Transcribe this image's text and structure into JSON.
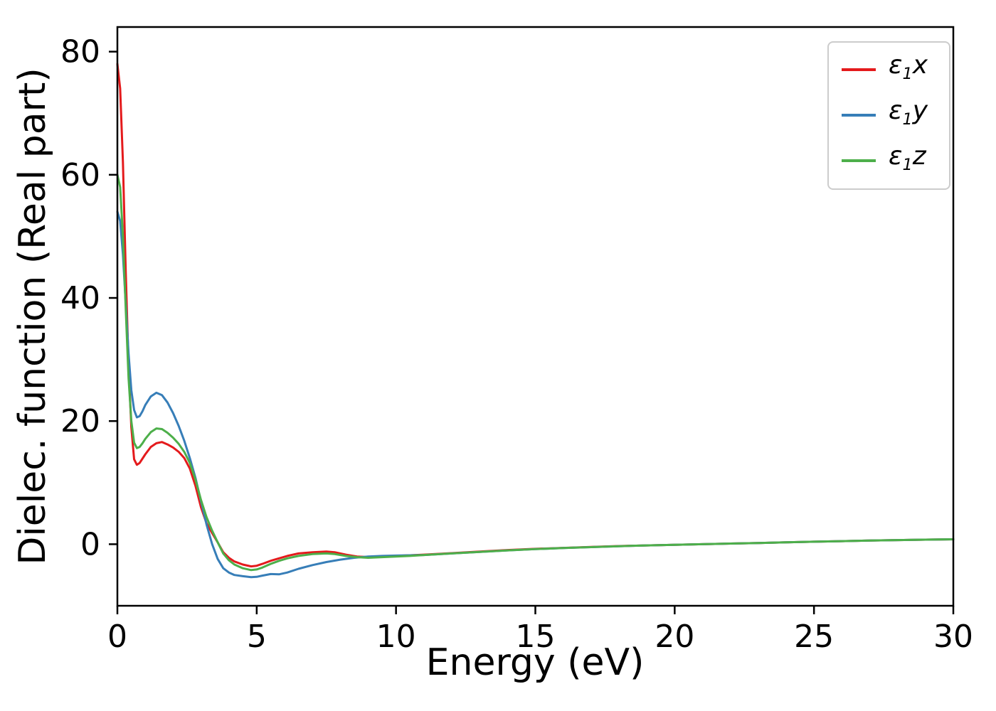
{
  "chart_data": {
    "type": "line",
    "title": "",
    "xlabel": "Energy (eV)",
    "ylabel": "Dielec. function (Real part)",
    "xlim": [
      0,
      30
    ],
    "ylim": [
      -10,
      84
    ],
    "xticks": [
      0,
      5,
      10,
      15,
      20,
      25,
      30
    ],
    "yticks": [
      0,
      20,
      40,
      60,
      80
    ],
    "grid": false,
    "legend_position": "upper right",
    "series": [
      {
        "name": "eps1x",
        "label": "ε1x",
        "color": "#e41a1c",
        "points": [
          [
            0,
            78
          ],
          [
            0.1,
            74
          ],
          [
            0.2,
            62
          ],
          [
            0.3,
            44
          ],
          [
            0.4,
            29
          ],
          [
            0.5,
            19
          ],
          [
            0.6,
            13.8
          ],
          [
            0.7,
            12.9
          ],
          [
            0.8,
            13.2
          ],
          [
            0.9,
            13.9
          ],
          [
            1.0,
            14.6
          ],
          [
            1.2,
            15.8
          ],
          [
            1.4,
            16.4
          ],
          [
            1.6,
            16.6
          ],
          [
            1.8,
            16.2
          ],
          [
            2.0,
            15.7
          ],
          [
            2.2,
            15.0
          ],
          [
            2.4,
            14.0
          ],
          [
            2.6,
            12.3
          ],
          [
            2.8,
            9.5
          ],
          [
            3.0,
            6.0
          ],
          [
            3.2,
            3.4
          ],
          [
            3.4,
            1.8
          ],
          [
            3.6,
            0.3
          ],
          [
            3.8,
            -1.3
          ],
          [
            4.0,
            -2.2
          ],
          [
            4.2,
            -2.8
          ],
          [
            4.5,
            -3.3
          ],
          [
            4.8,
            -3.6
          ],
          [
            5.0,
            -3.5
          ],
          [
            5.2,
            -3.2
          ],
          [
            5.5,
            -2.7
          ],
          [
            5.8,
            -2.3
          ],
          [
            6.1,
            -1.9
          ],
          [
            6.5,
            -1.5
          ],
          [
            7.0,
            -1.3
          ],
          [
            7.5,
            -1.2
          ],
          [
            7.8,
            -1.3
          ],
          [
            8.2,
            -1.7
          ],
          [
            8.6,
            -2.0
          ],
          [
            9.0,
            -2.1
          ],
          [
            9.5,
            -2.0
          ],
          [
            10,
            -1.9
          ],
          [
            10.5,
            -1.8
          ],
          [
            11,
            -1.7
          ],
          [
            12,
            -1.45
          ],
          [
            13,
            -1.2
          ],
          [
            14,
            -0.95
          ],
          [
            15,
            -0.75
          ],
          [
            16,
            -0.6
          ],
          [
            17,
            -0.45
          ],
          [
            18,
            -0.3
          ],
          [
            19,
            -0.2
          ],
          [
            20,
            -0.1
          ],
          [
            21,
            0
          ],
          [
            22,
            0.1
          ],
          [
            23,
            0.2
          ],
          [
            24,
            0.3
          ],
          [
            25,
            0.4
          ],
          [
            26,
            0.5
          ],
          [
            27,
            0.6
          ],
          [
            28,
            0.67
          ],
          [
            29,
            0.74
          ],
          [
            30,
            0.8
          ]
        ]
      },
      {
        "name": "eps1y",
        "label": "ε1y",
        "color": "#377eb8",
        "points": [
          [
            0,
            54
          ],
          [
            0.1,
            52.5
          ],
          [
            0.2,
            47
          ],
          [
            0.3,
            39
          ],
          [
            0.4,
            31
          ],
          [
            0.5,
            25
          ],
          [
            0.6,
            21.8
          ],
          [
            0.7,
            20.6
          ],
          [
            0.8,
            20.8
          ],
          [
            0.9,
            21.6
          ],
          [
            1.0,
            22.6
          ],
          [
            1.2,
            24.0
          ],
          [
            1.4,
            24.6
          ],
          [
            1.6,
            24.2
          ],
          [
            1.8,
            23.0
          ],
          [
            2.0,
            21.3
          ],
          [
            2.2,
            19.2
          ],
          [
            2.4,
            16.8
          ],
          [
            2.6,
            14.0
          ],
          [
            2.8,
            10.8
          ],
          [
            3.0,
            7.0
          ],
          [
            3.2,
            3.2
          ],
          [
            3.4,
            0.0
          ],
          [
            3.6,
            -2.4
          ],
          [
            3.8,
            -3.9
          ],
          [
            4.0,
            -4.6
          ],
          [
            4.2,
            -5.0
          ],
          [
            4.5,
            -5.2
          ],
          [
            4.8,
            -5.35
          ],
          [
            5.0,
            -5.3
          ],
          [
            5.2,
            -5.1
          ],
          [
            5.5,
            -4.85
          ],
          [
            5.8,
            -4.9
          ],
          [
            6.1,
            -4.6
          ],
          [
            6.5,
            -4.0
          ],
          [
            7.0,
            -3.4
          ],
          [
            7.5,
            -2.9
          ],
          [
            8.0,
            -2.5
          ],
          [
            8.5,
            -2.2
          ],
          [
            9.0,
            -2.0
          ],
          [
            9.5,
            -1.9
          ],
          [
            10,
            -1.85
          ],
          [
            10.5,
            -1.8
          ],
          [
            11,
            -1.75
          ],
          [
            12,
            -1.5
          ],
          [
            13,
            -1.25
          ],
          [
            14,
            -1.0
          ],
          [
            15,
            -0.8
          ],
          [
            16,
            -0.62
          ],
          [
            17,
            -0.47
          ],
          [
            18,
            -0.32
          ],
          [
            19,
            -0.2
          ],
          [
            20,
            -0.1
          ],
          [
            21,
            0
          ],
          [
            22,
            0.1
          ],
          [
            23,
            0.2
          ],
          [
            24,
            0.3
          ],
          [
            25,
            0.4
          ],
          [
            26,
            0.5
          ],
          [
            27,
            0.6
          ],
          [
            28,
            0.67
          ],
          [
            29,
            0.74
          ],
          [
            30,
            0.8
          ]
        ]
      },
      {
        "name": "eps1z",
        "label": "ε1z",
        "color": "#4daf4a",
        "points": [
          [
            0,
            60
          ],
          [
            0.1,
            58
          ],
          [
            0.2,
            50
          ],
          [
            0.3,
            38
          ],
          [
            0.4,
            27
          ],
          [
            0.5,
            20
          ],
          [
            0.6,
            16.5
          ],
          [
            0.7,
            15.6
          ],
          [
            0.8,
            15.8
          ],
          [
            0.9,
            16.4
          ],
          [
            1.0,
            17.1
          ],
          [
            1.2,
            18.2
          ],
          [
            1.4,
            18.8
          ],
          [
            1.6,
            18.7
          ],
          [
            1.8,
            18.1
          ],
          [
            2.0,
            17.3
          ],
          [
            2.2,
            16.3
          ],
          [
            2.4,
            15.0
          ],
          [
            2.6,
            13.2
          ],
          [
            2.8,
            10.5
          ],
          [
            3.0,
            7.2
          ],
          [
            3.2,
            4.4
          ],
          [
            3.4,
            2.2
          ],
          [
            3.6,
            0.3
          ],
          [
            3.8,
            -1.5
          ],
          [
            4.0,
            -2.6
          ],
          [
            4.2,
            -3.3
          ],
          [
            4.5,
            -3.9
          ],
          [
            4.8,
            -4.2
          ],
          [
            5.0,
            -4.1
          ],
          [
            5.2,
            -3.8
          ],
          [
            5.5,
            -3.2
          ],
          [
            5.8,
            -2.7
          ],
          [
            6.1,
            -2.3
          ],
          [
            6.5,
            -1.9
          ],
          [
            7.0,
            -1.6
          ],
          [
            7.5,
            -1.5
          ],
          [
            7.8,
            -1.6
          ],
          [
            8.2,
            -1.9
          ],
          [
            8.6,
            -2.1
          ],
          [
            9.0,
            -2.2
          ],
          [
            9.5,
            -2.1
          ],
          [
            10,
            -2.0
          ],
          [
            10.5,
            -1.9
          ],
          [
            11,
            -1.75
          ],
          [
            12,
            -1.5
          ],
          [
            13,
            -1.25
          ],
          [
            14,
            -1.0
          ],
          [
            15,
            -0.8
          ],
          [
            16,
            -0.62
          ],
          [
            17,
            -0.47
          ],
          [
            18,
            -0.32
          ],
          [
            19,
            -0.2
          ],
          [
            20,
            -0.1
          ],
          [
            21,
            0
          ],
          [
            22,
            0.1
          ],
          [
            23,
            0.2
          ],
          [
            24,
            0.3
          ],
          [
            25,
            0.4
          ],
          [
            26,
            0.5
          ],
          [
            27,
            0.6
          ],
          [
            28,
            0.67
          ],
          [
            29,
            0.74
          ],
          [
            30,
            0.8
          ]
        ]
      }
    ]
  },
  "legend": {
    "items": [
      {
        "symbol": "ε",
        "sub": "1",
        "var": "x",
        "color": "#e41a1c"
      },
      {
        "symbol": "ε",
        "sub": "1",
        "var": "y",
        "color": "#377eb8"
      },
      {
        "symbol": "ε",
        "sub": "1",
        "var": "z",
        "color": "#4daf4a"
      }
    ]
  },
  "axes": {
    "xlabel": "Energy (eV)",
    "ylabel": "Dielec. function (Real part)"
  },
  "colors": {
    "spine": "#000000",
    "background": "#ffffff",
    "legend_border": "#cccccc"
  }
}
